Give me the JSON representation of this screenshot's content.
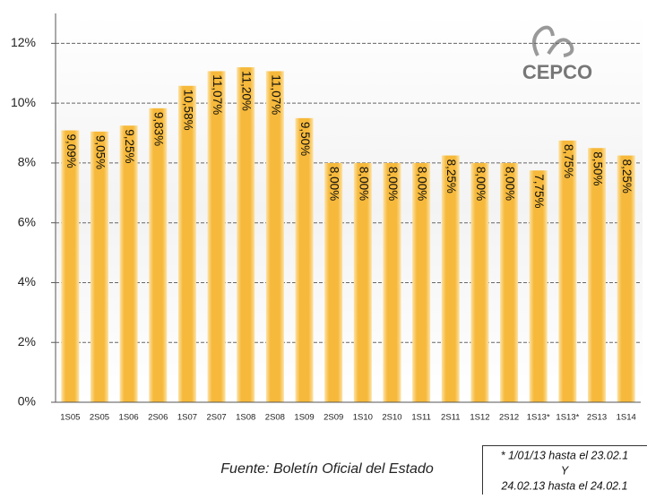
{
  "chart_data": {
    "type": "bar",
    "categories": [
      "1S05",
      "2S05",
      "1S06",
      "2S06",
      "1S07",
      "2S07",
      "1S08",
      "2S08",
      "1S09",
      "2S09",
      "1S10",
      "2S10",
      "1S11",
      "2S11",
      "1S12",
      "2S12",
      "1S13*",
      "1S13*",
      "2S13",
      "1S14"
    ],
    "values": [
      9.09,
      9.05,
      9.25,
      9.83,
      10.58,
      11.07,
      11.2,
      11.07,
      9.5,
      8.0,
      8.0,
      8.0,
      8.0,
      8.25,
      8.0,
      8.0,
      7.75,
      8.75,
      8.5,
      8.25
    ],
    "value_labels": [
      "9,09%",
      "9,05%",
      "9,25%",
      "9,83%",
      "10,58%",
      "11,07%",
      "11,20%",
      "11,07%",
      "9,50%",
      "8,00%",
      "8,00%",
      "8,00%",
      "8,00%",
      "8,25%",
      "8,00%",
      "8,00%",
      "7,75%",
      "8,75%",
      "8,50%",
      "8,25%"
    ],
    "color": "#f6b93b",
    "ylim": [
      0,
      13
    ],
    "yticks": [
      {
        "value": 0,
        "label": "0%"
      },
      {
        "value": 2,
        "label": "2%"
      },
      {
        "value": 4,
        "label": "4%"
      },
      {
        "value": 6,
        "label": "6%"
      },
      {
        "value": 8,
        "label": "8%"
      },
      {
        "value": 10,
        "label": "10%"
      },
      {
        "value": 12,
        "label": "12%"
      }
    ],
    "grid": true,
    "logo": "CEPCO",
    "source": "Fuente: Boletín Oficial del Estado",
    "footnote": [
      "* 1/01/13 hasta el 23.02.1",
      "Y",
      "24.02.13 hasta el 24.02.1"
    ]
  }
}
